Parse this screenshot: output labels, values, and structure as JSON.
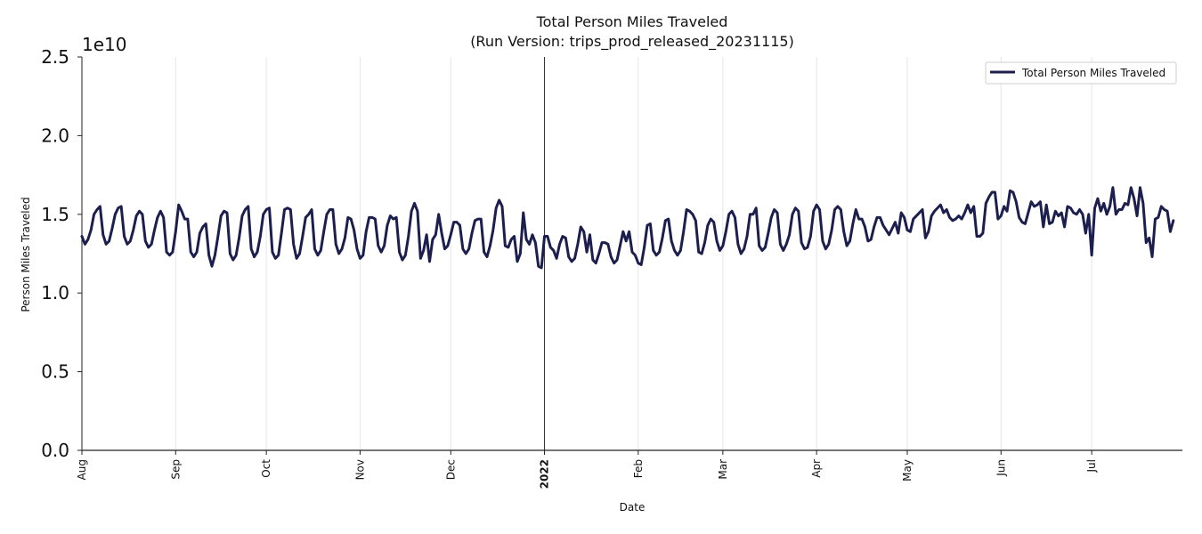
{
  "chart_data": {
    "type": "line",
    "title": "Total Person Miles Traveled",
    "subtitle": "(Run Version: trips_prod_released_20231115)",
    "xlabel": "Date",
    "ylabel": "Person Miles Traveled",
    "y_offset_label": "1e10",
    "ylim": [
      0,
      25000000000
    ],
    "yticks": [
      0,
      5000000000,
      10000000000,
      15000000000,
      20000000000,
      25000000000
    ],
    "ytick_labels": [
      "0.0",
      "0.5",
      "1.0",
      "1.5",
      "2.0",
      "2.5"
    ],
    "xlim": [
      "2021-08-01",
      "2022-07-31"
    ],
    "xticks": [
      {
        "date": "2021-08-01",
        "label": "Aug",
        "bold": false
      },
      {
        "date": "2021-09-01",
        "label": "Sep",
        "bold": false
      },
      {
        "date": "2021-10-01",
        "label": "Oct",
        "bold": false
      },
      {
        "date": "2021-11-01",
        "label": "Nov",
        "bold": false
      },
      {
        "date": "2021-12-01",
        "label": "Dec",
        "bold": false
      },
      {
        "date": "2022-01-01",
        "label": "2022",
        "bold": true
      },
      {
        "date": "2022-02-01",
        "label": "Feb",
        "bold": false
      },
      {
        "date": "2022-03-01",
        "label": "Mar",
        "bold": false
      },
      {
        "date": "2022-04-01",
        "label": "Apr",
        "bold": false
      },
      {
        "date": "2022-05-01",
        "label": "May",
        "bold": false
      },
      {
        "date": "2022-06-01",
        "label": "Jun",
        "bold": false
      },
      {
        "date": "2022-07-01",
        "label": "Jul",
        "bold": false
      }
    ],
    "year_divider": "2022-01-01",
    "grid": "vertical",
    "legend": "top-right",
    "series": [
      {
        "name": "Total Person Miles Traveled",
        "color": "#1c1f4d",
        "start_date": "2021-08-01",
        "step_days": 1,
        "unit": "1e10",
        "values": [
          1.36,
          1.31,
          1.34,
          1.4,
          1.5,
          1.53,
          1.55,
          1.37,
          1.31,
          1.33,
          1.41,
          1.5,
          1.54,
          1.55,
          1.36,
          1.31,
          1.33,
          1.4,
          1.49,
          1.52,
          1.5,
          1.33,
          1.29,
          1.31,
          1.4,
          1.48,
          1.52,
          1.48,
          1.26,
          1.24,
          1.26,
          1.39,
          1.56,
          1.52,
          1.47,
          1.47,
          1.26,
          1.23,
          1.26,
          1.38,
          1.42,
          1.44,
          1.24,
          1.17,
          1.24,
          1.36,
          1.49,
          1.52,
          1.51,
          1.25,
          1.21,
          1.24,
          1.35,
          1.49,
          1.53,
          1.55,
          1.28,
          1.23,
          1.26,
          1.36,
          1.5,
          1.53,
          1.54,
          1.26,
          1.22,
          1.24,
          1.38,
          1.53,
          1.54,
          1.53,
          1.31,
          1.22,
          1.25,
          1.36,
          1.48,
          1.5,
          1.53,
          1.28,
          1.24,
          1.27,
          1.39,
          1.5,
          1.53,
          1.53,
          1.31,
          1.25,
          1.28,
          1.35,
          1.48,
          1.47,
          1.4,
          1.28,
          1.22,
          1.24,
          1.39,
          1.48,
          1.48,
          1.47,
          1.3,
          1.26,
          1.3,
          1.43,
          1.49,
          1.47,
          1.48,
          1.26,
          1.21,
          1.24,
          1.36,
          1.52,
          1.57,
          1.52,
          1.22,
          1.27,
          1.37,
          1.2,
          1.34,
          1.37,
          1.5,
          1.38,
          1.28,
          1.3,
          1.37,
          1.45,
          1.45,
          1.43,
          1.28,
          1.25,
          1.28,
          1.38,
          1.46,
          1.47,
          1.47,
          1.26,
          1.23,
          1.3,
          1.4,
          1.54,
          1.59,
          1.55,
          1.3,
          1.29,
          1.34,
          1.36,
          1.2,
          1.25,
          1.51,
          1.34,
          1.31,
          1.37,
          1.32,
          1.17,
          1.16,
          1.36,
          1.36,
          1.29,
          1.27,
          1.22,
          1.31,
          1.36,
          1.35,
          1.23,
          1.2,
          1.22,
          1.31,
          1.42,
          1.39,
          1.26,
          1.37,
          1.21,
          1.19,
          1.25,
          1.32,
          1.32,
          1.31,
          1.23,
          1.19,
          1.21,
          1.3,
          1.39,
          1.33,
          1.39,
          1.26,
          1.24,
          1.19,
          1.18,
          1.29,
          1.43,
          1.44,
          1.27,
          1.24,
          1.26,
          1.35,
          1.46,
          1.47,
          1.33,
          1.27,
          1.24,
          1.27,
          1.39,
          1.53,
          1.52,
          1.5,
          1.46,
          1.26,
          1.25,
          1.32,
          1.43,
          1.47,
          1.45,
          1.33,
          1.27,
          1.3,
          1.39,
          1.5,
          1.52,
          1.48,
          1.31,
          1.25,
          1.28,
          1.36,
          1.5,
          1.5,
          1.54,
          1.3,
          1.27,
          1.29,
          1.38,
          1.48,
          1.53,
          1.51,
          1.31,
          1.27,
          1.31,
          1.37,
          1.5,
          1.54,
          1.52,
          1.32,
          1.28,
          1.29,
          1.36,
          1.52,
          1.56,
          1.53,
          1.33,
          1.28,
          1.31,
          1.4,
          1.53,
          1.55,
          1.53,
          1.39,
          1.3,
          1.33,
          1.44,
          1.53,
          1.47,
          1.47,
          1.42,
          1.33,
          1.34,
          1.42,
          1.48,
          1.48,
          1.43,
          1.4,
          1.37,
          1.41,
          1.45,
          1.38,
          1.51,
          1.48,
          1.4,
          1.39,
          1.47,
          1.49,
          1.51,
          1.53,
          1.35,
          1.39,
          1.49,
          1.52,
          1.54,
          1.56,
          1.51,
          1.53,
          1.48,
          1.46,
          1.47,
          1.49,
          1.47,
          1.51,
          1.56,
          1.51,
          1.55,
          1.36,
          1.36,
          1.38,
          1.57,
          1.61,
          1.64,
          1.64,
          1.47,
          1.49,
          1.55,
          1.52,
          1.65,
          1.64,
          1.58,
          1.48,
          1.45,
          1.44,
          1.51,
          1.58,
          1.55,
          1.56,
          1.58,
          1.42,
          1.56,
          1.44,
          1.45,
          1.52,
          1.49,
          1.51,
          1.42,
          1.55,
          1.54,
          1.51,
          1.5,
          1.53,
          1.5,
          1.38,
          1.5,
          1.24,
          1.54,
          1.6,
          1.52,
          1.57,
          1.5,
          1.55,
          1.67,
          1.5,
          1.53,
          1.53,
          1.57,
          1.56,
          1.67,
          1.6,
          1.49,
          1.67,
          1.57,
          1.32,
          1.35,
          1.23,
          1.47,
          1.48,
          1.55,
          1.53,
          1.52,
          1.39,
          1.46
        ]
      }
    ]
  }
}
